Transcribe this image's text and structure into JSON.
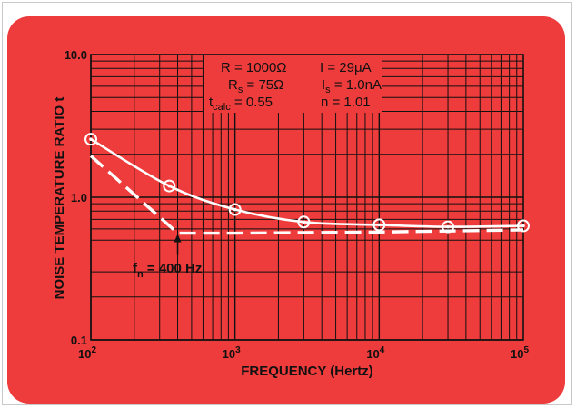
{
  "chart_data": {
    "type": "line",
    "xlabel": "FREQUENCY (Hertz)",
    "ylabel": "NOISE TEMPERATURE RATIO t",
    "xscale": "log",
    "yscale": "log",
    "xlim": [
      100,
      100000
    ],
    "ylim": [
      0.1,
      10.0
    ],
    "grid": true,
    "x_ticks": [
      {
        "base": "10",
        "exp": "2"
      },
      {
        "base": "10",
        "exp": "3"
      },
      {
        "base": "10",
        "exp": "4"
      },
      {
        "base": "10",
        "exp": "5"
      }
    ],
    "y_ticks": [
      "0.1",
      "1.0",
      "10.0"
    ],
    "series": [
      {
        "style": "solid-with-circle-markers",
        "color": "#ffffff",
        "x": [
          100,
          350,
          1000,
          3000,
          10000,
          30000,
          100000
        ],
        "y": [
          2.55,
          1.2,
          0.82,
          0.67,
          0.64,
          0.62,
          0.63
        ]
      },
      {
        "style": "dashed",
        "color": "#ffffff",
        "x": [
          100,
          400,
          1000,
          10000,
          100000
        ],
        "y": [
          1.95,
          0.56,
          0.56,
          0.57,
          0.59
        ]
      }
    ],
    "parameters": {
      "row1": {
        "left": "R = 1000Ω",
        "right": "I = 29μA"
      },
      "row2": {
        "left_main": "R",
        "left_sub": "s",
        "left_rest": " = 75Ω",
        "right_main": "I",
        "right_sub": "s",
        "right_rest": " = 1.0nA"
      },
      "row3": {
        "left_main": "t",
        "left_sub": "calc",
        "left_rest": " = 0.55",
        "right": "n = 1.01"
      }
    },
    "annotation": {
      "main": "f",
      "sub": "n",
      "rest": " = 400 Hz",
      "x": 400,
      "y": 0.56
    }
  },
  "colors": {
    "background": "#ee3b3b",
    "grid": "#111111",
    "curves": "#ffffff"
  }
}
